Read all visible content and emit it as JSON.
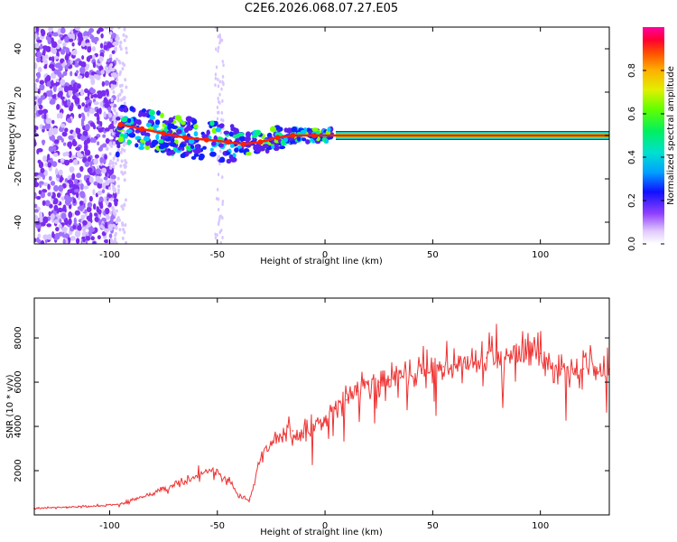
{
  "title": "C2E6.2026.068.07.27.E05",
  "colors": {
    "signal": "#ff0000",
    "snr_line": "#ee3333",
    "cloud": "#7b2cf0",
    "cloud_light": "#d9c6ff"
  },
  "chart_data": [
    {
      "type": "heatmap",
      "title": "C2E6.2026.068.07.27.E05",
      "xlabel": "Height of straight line (km)",
      "ylabel": "Frequency (Hz)",
      "xlim": [
        -135,
        132
      ],
      "ylim": [
        -50,
        50
      ],
      "xticks": [
        -100,
        -50,
        0,
        50,
        100
      ],
      "yticks": [
        -40,
        -20,
        0,
        20,
        40
      ],
      "xtick_labels": [
        "-100",
        "-50",
        "0",
        "50",
        "100"
      ],
      "ytick_labels": [
        "-40",
        "-20",
        "0",
        "20",
        "40"
      ],
      "grid": false,
      "colorbar": {
        "label": "Normalized spectral amplitude",
        "range": [
          0.0,
          1.0
        ],
        "ticks": [
          0.0,
          0.2,
          0.4,
          0.6,
          0.8
        ],
        "tick_labels": [
          "0.0",
          "0.2",
          "0.4",
          "0.6",
          "0.8"
        ]
      },
      "signal_track": [
        {
          "x": -95,
          "y": 5
        },
        {
          "x": -85,
          "y": 3
        },
        {
          "x": -75,
          "y": 1
        },
        {
          "x": -65,
          "y": -1
        },
        {
          "x": -55,
          "y": -2
        },
        {
          "x": -45,
          "y": -3
        },
        {
          "x": -38,
          "y": -4
        },
        {
          "x": -30,
          "y": -3
        },
        {
          "x": -22,
          "y": -1
        },
        {
          "x": -15,
          "y": 0
        },
        {
          "x": -5,
          "y": 0
        },
        {
          "x": 5,
          "y": 0
        },
        {
          "x": 50,
          "y": 0
        },
        {
          "x": 100,
          "y": 0
        },
        {
          "x": 132,
          "y": 0
        }
      ]
    },
    {
      "type": "line",
      "xlabel": "Height of straight line (km)",
      "ylabel": "SNR (10 * v/v)",
      "xlim": [
        -135,
        132
      ],
      "ylim": [
        0,
        9800
      ],
      "xticks": [
        -100,
        -50,
        0,
        50,
        100
      ],
      "yticks": [
        2000,
        4000,
        6000,
        8000
      ],
      "xtick_labels": [
        "-100",
        "-50",
        "0",
        "50",
        "100"
      ],
      "ytick_labels": [
        "2000",
        "4000",
        "6000",
        "8000"
      ],
      "grid": false,
      "series": [
        {
          "name": "SNR",
          "x": [
            -135,
            -120,
            -105,
            -95,
            -85,
            -75,
            -65,
            -55,
            -45,
            -40,
            -35,
            -30,
            -25,
            -20,
            -15,
            -10,
            -5,
            0,
            5,
            10,
            15,
            20,
            25,
            30,
            35,
            40,
            45,
            50,
            55,
            60,
            65,
            70,
            75,
            80,
            85,
            90,
            95,
            100,
            105,
            110,
            115,
            120,
            125,
            132
          ],
          "values": [
            300,
            350,
            400,
            500,
            800,
            1200,
            1500,
            2000,
            1600,
            800,
            700,
            2500,
            3200,
            3500,
            3800,
            3700,
            4000,
            4300,
            4800,
            5200,
            5600,
            5900,
            6000,
            6100,
            6200,
            6300,
            6400,
            6500,
            6700,
            6800,
            6900,
            7000,
            7100,
            7100,
            7200,
            7300,
            7400,
            7300,
            6700,
            6600,
            6600,
            6600,
            6500,
            6600
          ]
        }
      ]
    }
  ]
}
